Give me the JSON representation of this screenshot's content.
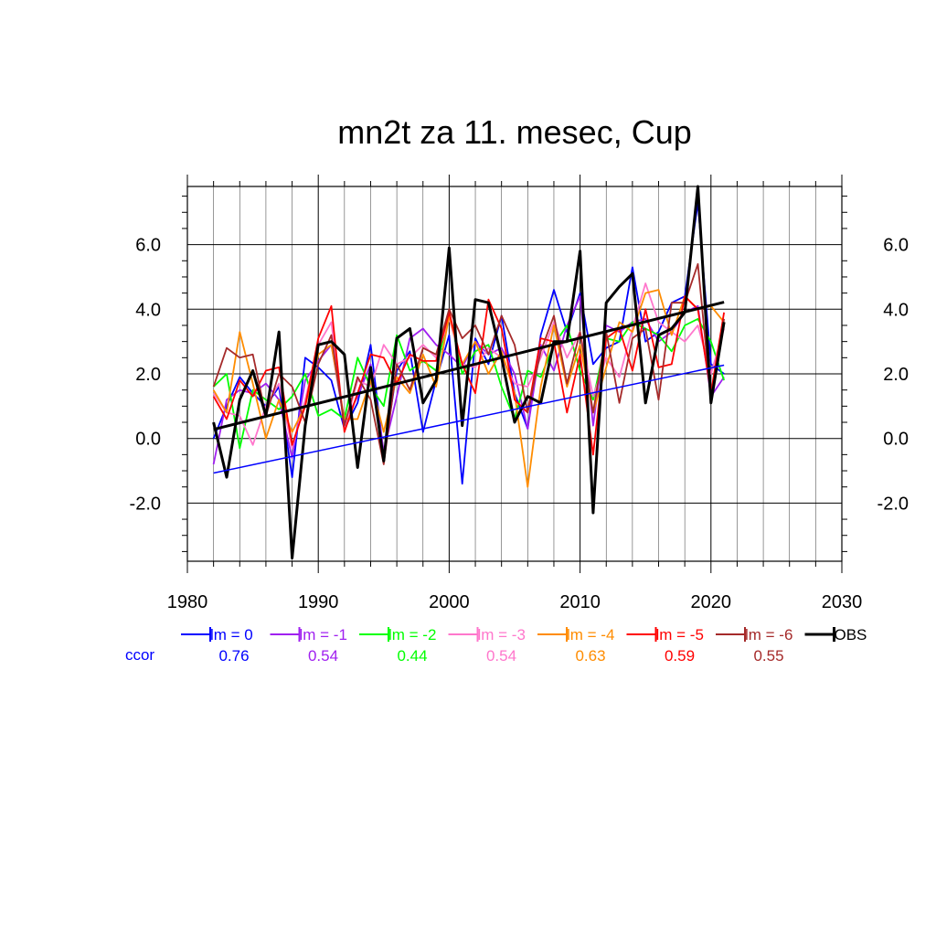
{
  "chart_data": {
    "type": "line",
    "title": "mn2t za 11. mesec, Cup",
    "xlim": [
      1980,
      2030
    ],
    "ylim": [
      -3.8,
      7.8
    ],
    "x_ticks": [
      1980,
      1990,
      2000,
      2010,
      2020,
      2030
    ],
    "x_tick_labels": [
      "1980",
      "1990",
      "2000",
      "2010",
      "2020",
      "2030"
    ],
    "y_ticks": [
      -2,
      0,
      2,
      4,
      6
    ],
    "y_tick_labels": [
      "-2.0",
      "0.0",
      "2.0",
      "4.0",
      "6.0"
    ],
    "grid": true,
    "legend_position": "below",
    "ccor_label": "ccor",
    "x": [
      1982,
      1983,
      1984,
      1985,
      1986,
      1987,
      1988,
      1989,
      1990,
      1991,
      1992,
      1993,
      1994,
      1995,
      1996,
      1997,
      1998,
      1999,
      2000,
      2001,
      2002,
      2003,
      2004,
      2005,
      2006,
      2007,
      2008,
      2009,
      2010,
      2011,
      2012,
      2013,
      2014,
      2015,
      2016,
      2017,
      2018,
      2019,
      2020,
      2021
    ],
    "series": [
      {
        "name": "lm = 0",
        "color": "#0000ff",
        "ccor": "0.76",
        "values": [
          0.0,
          1.0,
          1.9,
          1.4,
          1.0,
          1.6,
          -1.2,
          2.5,
          2.2,
          1.8,
          0.3,
          1.1,
          2.9,
          -0.5,
          2.1,
          2.7,
          0.2,
          1.8,
          3.2,
          -1.4,
          3.1,
          2.3,
          3.8,
          1.4,
          0.3,
          3.2,
          4.6,
          3.3,
          4.5,
          2.3,
          2.8,
          3.0,
          5.3,
          3.0,
          3.3,
          4.2,
          4.4,
          7.3,
          2.3,
          2.0
        ],
        "trend": [
          -1.07,
          2.27
        ]
      },
      {
        "name": "lm = -1",
        "color": "#a020f0",
        "ccor": "0.54",
        "values": [
          -0.8,
          1.2,
          1.5,
          1.4,
          1.7,
          1.2,
          -0.6,
          1.8,
          2.4,
          2.9,
          0.5,
          1.3,
          2.3,
          -0.4,
          1.3,
          3.1,
          3.4,
          2.9,
          2.6,
          2.2,
          3.0,
          2.6,
          2.8,
          2.0,
          0.3,
          2.9,
          2.1,
          3.5,
          4.4,
          0.4,
          3.5,
          3.3,
          3.6,
          3.7,
          3.0,
          3.3,
          3.9,
          4.1,
          1.3,
          1.9
        ]
      },
      {
        "name": "lm = -2",
        "color": "#00ff00",
        "ccor": "0.44",
        "values": [
          1.6,
          2.0,
          -0.3,
          1.5,
          1.2,
          0.9,
          1.3,
          2.0,
          0.7,
          0.9,
          0.6,
          2.5,
          1.6,
          1.0,
          3.2,
          2.1,
          2.4,
          2.1,
          3.9,
          2.0,
          2.7,
          2.9,
          1.6,
          0.6,
          2.1,
          1.9,
          2.9,
          3.5,
          2.1,
          1.2,
          3.1,
          3.0,
          3.6,
          3.4,
          3.2,
          2.7,
          3.5,
          3.7,
          3.0,
          1.8
        ]
      },
      {
        "name": "lm = -3",
        "color": "#ff77cc",
        "ccor": "0.54",
        "values": [
          1.4,
          0.8,
          0.7,
          -0.2,
          1.0,
          1.7,
          -0.3,
          1.2,
          2.9,
          3.6,
          0.3,
          1.8,
          1.6,
          2.9,
          2.3,
          2.5,
          2.9,
          2.5,
          3.7,
          2.3,
          2.2,
          2.8,
          2.5,
          1.7,
          1.6,
          2.5,
          3.6,
          2.5,
          3.3,
          1.3,
          2.5,
          1.9,
          3.4,
          4.8,
          3.6,
          3.3,
          3.0,
          3.5,
          2.0,
          3.4
        ]
      },
      {
        "name": "lm = -4",
        "color": "#ff8c00",
        "ccor": "0.63",
        "values": [
          1.5,
          0.8,
          3.3,
          1.7,
          0.0,
          1.2,
          0.2,
          1.0,
          2.6,
          2.9,
          0.6,
          0.6,
          1.8,
          0.2,
          1.9,
          1.4,
          2.6,
          1.6,
          3.8,
          2.3,
          3.0,
          2.0,
          2.7,
          1.4,
          -1.5,
          1.6,
          3.5,
          1.6,
          2.9,
          0.8,
          2.2,
          3.6,
          3.3,
          4.5,
          4.6,
          3.2,
          4.4,
          4.0,
          4.1,
          3.6
        ]
      },
      {
        "name": "lm = -5",
        "color": "#ff0000",
        "ccor": "0.59",
        "values": [
          1.3,
          0.6,
          1.8,
          1.3,
          2.1,
          2.2,
          -0.2,
          1.0,
          3.1,
          4.1,
          0.2,
          1.4,
          2.6,
          2.5,
          1.7,
          2.6,
          2.4,
          2.4,
          3.9,
          2.3,
          1.4,
          4.3,
          3.4,
          1.2,
          0.8,
          3.1,
          3.0,
          0.8,
          2.6,
          -0.5,
          3.1,
          3.4,
          2.1,
          4.0,
          2.2,
          2.3,
          4.4,
          4.0,
          1.4,
          3.9
        ]
      },
      {
        "name": "lm = -6",
        "color": "#a52a2a",
        "ccor": "0.55",
        "values": [
          1.6,
          2.8,
          2.5,
          2.6,
          0.7,
          2.0,
          1.6,
          0.5,
          2.3,
          3.2,
          0.4,
          1.9,
          1.2,
          -0.8,
          2.3,
          1.5,
          2.8,
          2.6,
          4.0,
          3.1,
          3.5,
          2.6,
          3.8,
          2.9,
          0.8,
          2.7,
          3.8,
          1.7,
          3.3,
          0.8,
          3.3,
          1.1,
          3.1,
          3.4,
          1.2,
          4.2,
          4.2,
          5.4,
          1.2,
          3.7
        ]
      },
      {
        "name": "OBS",
        "color": "#000000",
        "ccor": "",
        "values": [
          0.5,
          -1.2,
          1.2,
          2.1,
          0.7,
          3.3,
          -3.7,
          0.4,
          2.9,
          3.0,
          2.6,
          -0.9,
          2.2,
          -0.7,
          3.1,
          3.4,
          1.1,
          1.8,
          5.9,
          0.4,
          4.3,
          4.2,
          2.5,
          0.5,
          1.3,
          1.1,
          3.0,
          3.0,
          5.8,
          -2.3,
          4.2,
          4.7,
          5.1,
          1.1,
          3.2,
          3.4,
          3.9,
          7.8,
          1.1,
          3.6
        ],
        "trend": [
          0.28,
          4.22
        ]
      }
    ]
  }
}
